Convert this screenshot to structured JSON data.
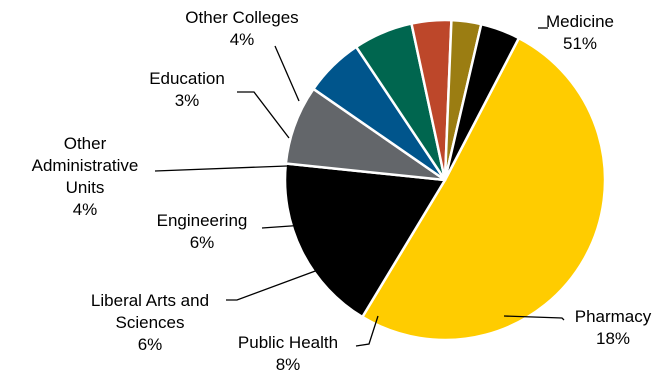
{
  "chart_data": {
    "type": "pie",
    "title": "",
    "start_angle_deg": 27.5,
    "direction": "clockwise",
    "slices": [
      {
        "name": "Medicine",
        "value": 51,
        "label": "51%",
        "color": "#FFCC00"
      },
      {
        "name": "Pharmacy",
        "value": 18,
        "label": "18%",
        "color": "#000000"
      },
      {
        "name": "Public Health",
        "value": 8,
        "label": "8%",
        "color": "#63666A"
      },
      {
        "name": "Liberal Arts and Sciences",
        "value": 6,
        "label": "6%",
        "color": "#00558C"
      },
      {
        "name": "Engineering",
        "value": 6,
        "label": "6%",
        "color": "#00664F"
      },
      {
        "name": "Other Administrative Units",
        "value": 4,
        "label": "4%",
        "color": "#BD472A"
      },
      {
        "name": "Education",
        "value": 3,
        "label": "3%",
        "color": "#9B7D12"
      },
      {
        "name": "Other Colleges",
        "value": 4,
        "label": "4%",
        "color": "#000000"
      }
    ]
  }
}
